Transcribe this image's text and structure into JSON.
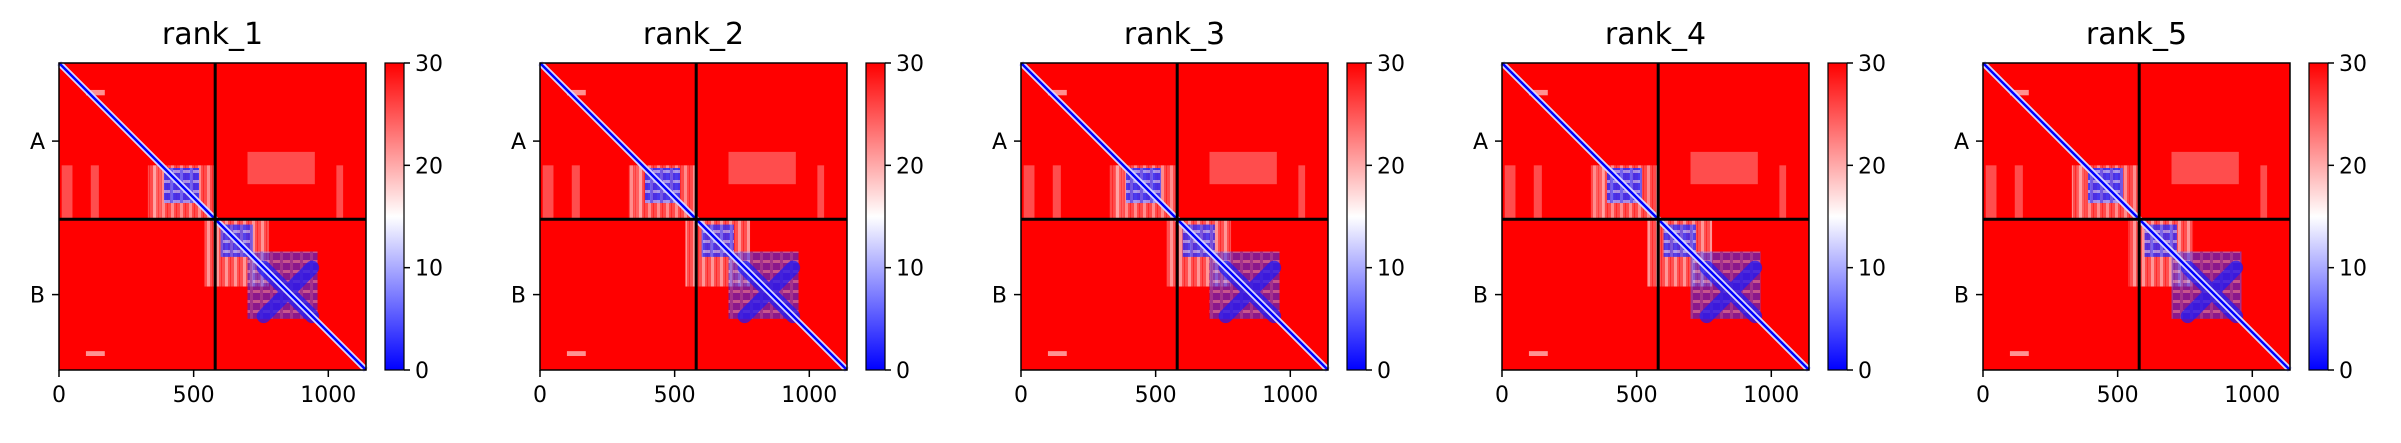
{
  "figure": {
    "colormap": "bwr",
    "colors": {
      "low": "#0000ff",
      "mid": "#ffffff",
      "high": "#ff0000",
      "axis": "#000000"
    }
  },
  "chart_data": [
    {
      "type": "heatmap",
      "title": "rank_1",
      "xlim": [
        0,
        1140
      ],
      "x_ticks": [
        "0",
        "500",
        "1000"
      ],
      "x_tick_values": [
        0,
        500,
        1000
      ],
      "y_ticks": [
        "A",
        "B"
      ],
      "chain_boundary": 580,
      "colorbar": {
        "range": [
          0,
          30
        ],
        "ticks": [
          "0",
          "10",
          "20",
          "30"
        ],
        "tick_values": [
          0,
          10,
          20,
          30
        ]
      }
    },
    {
      "type": "heatmap",
      "title": "rank_2",
      "xlim": [
        0,
        1140
      ],
      "x_ticks": [
        "0",
        "500",
        "1000"
      ],
      "x_tick_values": [
        0,
        500,
        1000
      ],
      "y_ticks": [
        "A",
        "B"
      ],
      "chain_boundary": 580,
      "colorbar": {
        "range": [
          0,
          30
        ],
        "ticks": [
          "0",
          "10",
          "20",
          "30"
        ],
        "tick_values": [
          0,
          10,
          20,
          30
        ]
      }
    },
    {
      "type": "heatmap",
      "title": "rank_3",
      "xlim": [
        0,
        1140
      ],
      "x_ticks": [
        "0",
        "500",
        "1000"
      ],
      "x_tick_values": [
        0,
        500,
        1000
      ],
      "y_ticks": [
        "A",
        "B"
      ],
      "chain_boundary": 580,
      "colorbar": {
        "range": [
          0,
          30
        ],
        "ticks": [
          "0",
          "10",
          "20",
          "30"
        ],
        "tick_values": [
          0,
          10,
          20,
          30
        ]
      }
    },
    {
      "type": "heatmap",
      "title": "rank_4",
      "xlim": [
        0,
        1140
      ],
      "x_ticks": [
        "0",
        "500",
        "1000"
      ],
      "x_tick_values": [
        0,
        500,
        1000
      ],
      "y_ticks": [
        "A",
        "B"
      ],
      "chain_boundary": 580,
      "colorbar": {
        "range": [
          0,
          30
        ],
        "ticks": [
          "0",
          "10",
          "20",
          "30"
        ],
        "tick_values": [
          0,
          10,
          20,
          30
        ]
      }
    },
    {
      "type": "heatmap",
      "title": "rank_5",
      "xlim": [
        0,
        1140
      ],
      "x_ticks": [
        "0",
        "500",
        "1000"
      ],
      "x_tick_values": [
        0,
        500,
        1000
      ],
      "y_ticks": [
        "A",
        "B"
      ],
      "chain_boundary": 580,
      "colorbar": {
        "range": [
          0,
          30
        ],
        "ticks": [
          "0",
          "10",
          "20",
          "30"
        ],
        "tick_values": [
          0,
          10,
          20,
          30
        ]
      }
    }
  ]
}
